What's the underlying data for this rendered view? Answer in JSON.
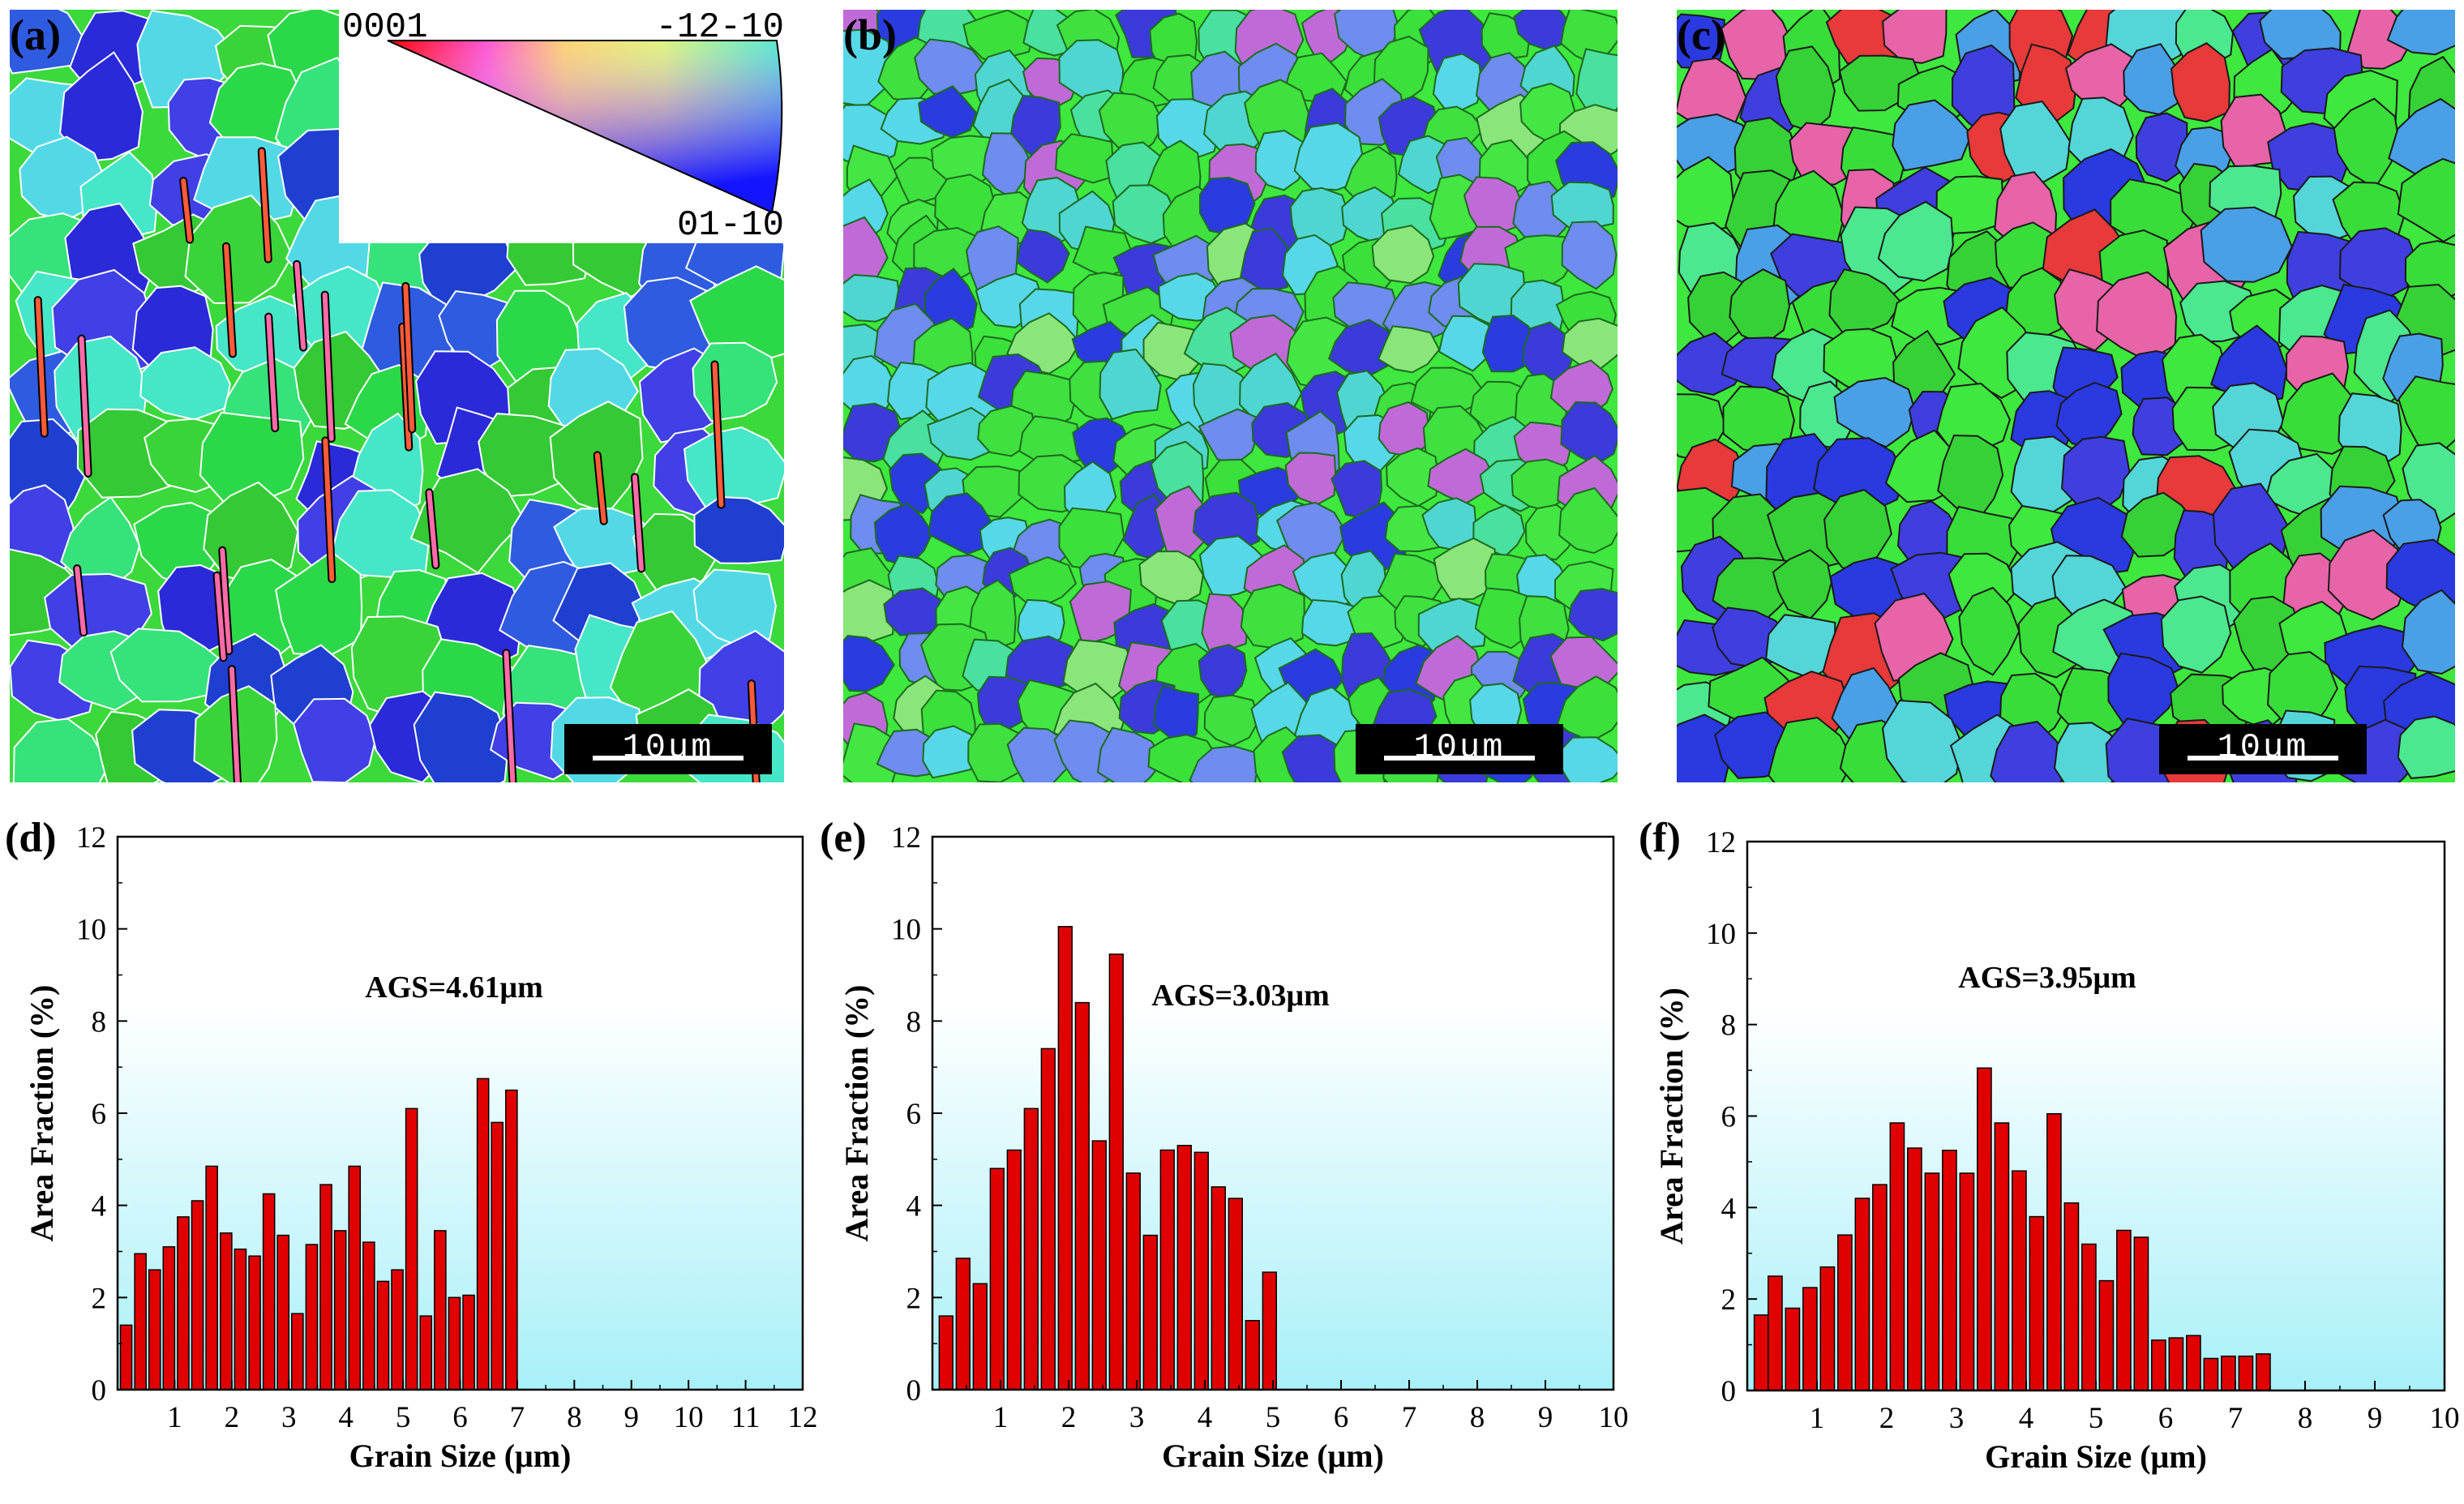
{
  "figure": {
    "maps": [
      {
        "label": "(a)",
        "scale_bar": "10um"
      },
      {
        "label": "(b)",
        "scale_bar": "10um"
      },
      {
        "label": "(c)",
        "scale_bar": "10um"
      }
    ],
    "ipf_legend": {
      "top_left": "0001",
      "top_right": "-12-10",
      "bottom_right": "01-10"
    }
  },
  "chart_data": [
    {
      "label": "(d)",
      "type": "bar",
      "annotation": "AGS=4.61μm",
      "xlabel": "Grain Size (μm)",
      "ylabel": "Area Fraction (%)",
      "xlim": [
        0,
        12
      ],
      "ylim": [
        0,
        12
      ],
      "xticks": [
        "1",
        "2",
        "3",
        "4",
        "5",
        "6",
        "7",
        "8",
        "9",
        "10",
        "11",
        "12"
      ],
      "yticks": [
        "0",
        "2",
        "4",
        "6",
        "8",
        "10",
        "12"
      ],
      "bar_width": 0.2,
      "x": [
        0.05,
        0.3,
        0.55,
        0.8,
        1.05,
        1.3,
        1.55,
        1.8,
        2.05,
        2.3,
        2.55,
        2.8,
        3.05,
        3.3,
        3.55,
        3.8,
        4.05,
        4.3,
        4.55,
        4.8,
        5.05,
        5.3,
        5.55,
        5.8,
        6.05,
        6.3,
        6.55,
        6.8,
        7.05,
        7.3,
        7.55,
        7.8,
        8.8,
        9.3
      ],
      "values": [
        1.4,
        2.95,
        2.6,
        3.1,
        3.75,
        4.1,
        4.85,
        3.4,
        3.05,
        2.9,
        4.25,
        3.35,
        1.65,
        3.15,
        4.45,
        3.45,
        4.85,
        3.2,
        2.35,
        2.6,
        6.1,
        1.6,
        3.45,
        2.0,
        2.05,
        6.75,
        5.8,
        6.5,
        0,
        0,
        0,
        0,
        0,
        0
      ],
      "bar_color": "#e00000"
    },
    {
      "label": "(e)",
      "type": "bar",
      "annotation": "AGS=3.03μm",
      "xlabel": "Grain Size (μm)",
      "ylabel": "Area Fraction (%)",
      "xlim": [
        0,
        10
      ],
      "ylim": [
        0,
        12
      ],
      "xticks": [
        "1",
        "2",
        "3",
        "4",
        "5",
        "6",
        "7",
        "8",
        "9",
        "10"
      ],
      "yticks": [
        "0",
        "2",
        "4",
        "6",
        "8",
        "10",
        "12"
      ],
      "bar_width": 0.2,
      "x": [
        0.1,
        0.35,
        0.6,
        0.85,
        1.1,
        1.35,
        1.6,
        1.85,
        2.1,
        2.35,
        2.6,
        2.85,
        3.1,
        3.35,
        3.6,
        3.85,
        4.1,
        4.35,
        4.6,
        4.85,
        5.35,
        5.85,
        6.1,
        8.1
      ],
      "values": [
        1.6,
        2.85,
        2.3,
        4.8,
        5.2,
        6.1,
        7.4,
        10.05,
        8.4,
        5.4,
        9.45,
        4.7,
        3.35,
        5.2,
        5.3,
        5.15,
        4.4,
        4.15,
        1.5,
        2.55,
        0,
        0,
        0,
        0
      ],
      "bar_color": "#e00000"
    },
    {
      "label": "(f)",
      "type": "bar",
      "annotation": "AGS=3.95μm",
      "xlabel": "Grain Size (μm)",
      "ylabel": "Area Fraction (%)",
      "xlim": [
        0,
        10
      ],
      "ylim": [
        0,
        12
      ],
      "xticks": [
        "1",
        "2",
        "3",
        "4",
        "5",
        "6",
        "7",
        "8",
        "9",
        "10"
      ],
      "yticks": [
        "0",
        "2",
        "4",
        "6",
        "8",
        "10",
        "12"
      ],
      "bar_width": 0.2,
      "x": [
        0.1,
        0.3,
        0.55,
        0.8,
        1.05,
        1.3,
        1.55,
        1.8,
        2.05,
        2.3,
        2.55,
        2.8,
        3.05,
        3.3,
        3.55,
        3.8,
        4.05,
        4.3,
        4.55,
        4.8,
        5.05,
        5.3,
        5.55,
        5.8,
        6.05,
        6.3,
        6.55,
        6.8,
        7.05,
        7.3,
        7.55,
        7.8,
        8.05,
        8.3,
        8.55,
        8.8
      ],
      "values": [
        1.65,
        2.5,
        1.8,
        2.25,
        2.7,
        3.4,
        4.2,
        4.5,
        5.85,
        5.3,
        4.75,
        5.25,
        4.75,
        7.05,
        5.85,
        4.8,
        3.8,
        6.05,
        4.1,
        3.2,
        2.4,
        3.5,
        3.35,
        1.1,
        1.15,
        1.2,
        0.7,
        0.75,
        0.75,
        0.8,
        0,
        0,
        0,
        0,
        0,
        0
      ],
      "bar_color": "#e00000"
    }
  ]
}
